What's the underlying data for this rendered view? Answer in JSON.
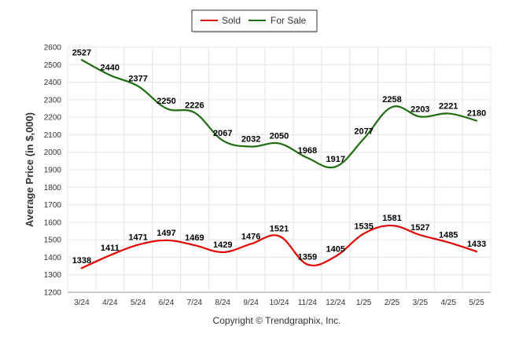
{
  "chart_data": {
    "type": "line",
    "title": "",
    "xlabel": "",
    "ylabel": "Average Price (in $,000)",
    "ylim": [
      1200,
      2600
    ],
    "yticks": [
      1200,
      1300,
      1400,
      1500,
      1600,
      1700,
      1800,
      1900,
      2000,
      2100,
      2200,
      2300,
      2400,
      2500,
      2600
    ],
    "categories": [
      "3/24",
      "4/24",
      "5/24",
      "6/24",
      "7/24",
      "8/24",
      "9/24",
      "10/24",
      "11/24",
      "12/24",
      "1/25",
      "2/25",
      "3/25",
      "4/25",
      "5/25"
    ],
    "legend_position": "top-center",
    "grid": true,
    "series": [
      {
        "name": "Sold",
        "color": "#e00000",
        "values": [
          1338,
          1411,
          1471,
          1497,
          1469,
          1429,
          1476,
          1521,
          1359,
          1405,
          1535,
          1581,
          1527,
          1485,
          1433
        ]
      },
      {
        "name": "For Sale",
        "color": "#1e6b10",
        "values": [
          2527,
          2440,
          2377,
          2250,
          2226,
          2067,
          2032,
          2050,
          1968,
          1917,
          2077,
          2258,
          2203,
          2221,
          2180
        ]
      }
    ]
  },
  "footer": {
    "copyright": "Copyright © Trendgraphix, Inc."
  }
}
